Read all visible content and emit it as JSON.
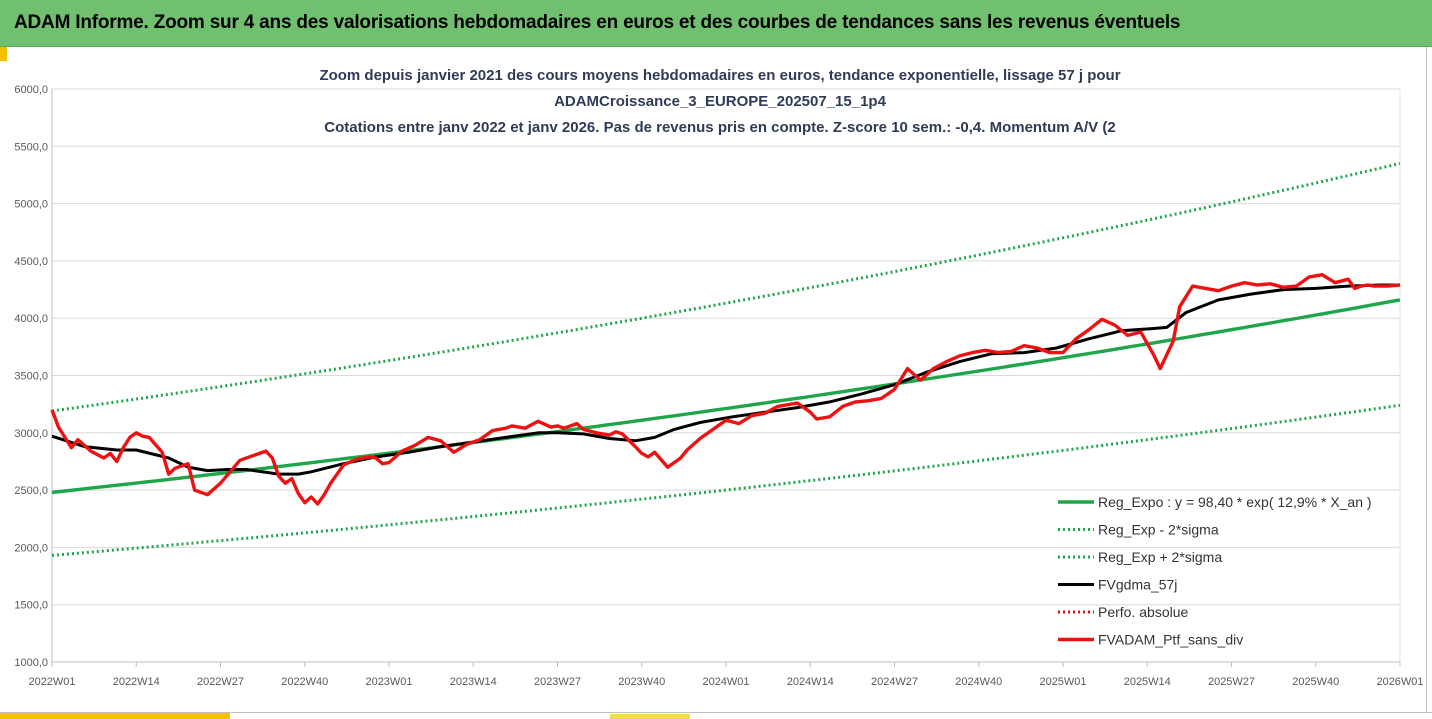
{
  "header": {
    "title": "ADAM Informe. Zoom sur 4 ans des valorisations hebdomadaires en euros et des courbes de tendances sans les revenus éventuels"
  },
  "chart_data": {
    "type": "line",
    "title_lines": [
      "Zoom depuis janvier 2021 des cours moyens hebdomadaires  en euros, tendance exponentielle, lissage 57 j pour",
      "ADAMCroissance_3_EUROPE_202507_15_1p4",
      "Cotations  entre janv 2022 et janv 2026. Pas de revenus pris en compte. Z-score 10 sem.: -0,4. Momentum  A/V (2"
    ],
    "xlabel": "",
    "ylabel": "",
    "ylim": [
      1000,
      6000
    ],
    "y_ticks": [
      "1000,0",
      "1500,0",
      "2000,0",
      "2500,0",
      "3000,0",
      "3500,0",
      "4000,0",
      "4500,0",
      "5000,0",
      "5500,0",
      "6000,0"
    ],
    "x_range_weeks": [
      0,
      208
    ],
    "x_ticks": [
      "2022W01",
      "2022W14",
      "2022W27",
      "2022W40",
      "2023W01",
      "2023W14",
      "2023W27",
      "2023W40",
      "2024W01",
      "2024W14",
      "2024W27",
      "2024W40",
      "2025W01",
      "2025W14",
      "2025W27",
      "2025W40",
      "2026W01"
    ],
    "grid": "horizontal",
    "legend_position": "bottom-right",
    "series": [
      {
        "name": "Reg_Expo : y = 98,40 * exp( 12,9% *  X_an )",
        "color": "#1fa64a",
        "style": "solid",
        "x": [
          0,
          208
        ],
        "y": [
          2480,
          4160
        ],
        "curve": "exponential"
      },
      {
        "name": "Reg_Exp - 2*sigma",
        "color": "#1fa64a",
        "style": "dotted",
        "x": [
          0,
          208
        ],
        "y": [
          1930,
          3240
        ],
        "curve": "exponential"
      },
      {
        "name": "Reg_Exp + 2*sigma",
        "color": "#1fa64a",
        "style": "dotted",
        "x": [
          0,
          208
        ],
        "y": [
          3190,
          5350
        ],
        "curve": "exponential"
      },
      {
        "name": "FVgdma_57j",
        "color": "#000000",
        "style": "solid",
        "x": [
          0,
          5,
          10,
          13,
          18,
          21,
          24,
          27,
          30,
          35,
          38,
          40,
          45,
          50,
          55,
          60,
          65,
          70,
          75,
          78,
          82,
          86,
          90,
          93,
          96,
          100,
          105,
          110,
          115,
          120,
          125,
          130,
          135,
          140,
          145,
          150,
          155,
          160,
          165,
          170,
          172,
          175,
          180,
          185,
          190,
          195,
          200,
          205,
          208
        ],
        "y": [
          2970,
          2880,
          2850,
          2850,
          2780,
          2700,
          2670,
          2680,
          2680,
          2640,
          2640,
          2660,
          2730,
          2790,
          2830,
          2880,
          2920,
          2960,
          3000,
          3000,
          2990,
          2950,
          2930,
          2960,
          3030,
          3090,
          3140,
          3180,
          3220,
          3270,
          3340,
          3420,
          3530,
          3620,
          3690,
          3700,
          3740,
          3820,
          3890,
          3910,
          3920,
          4050,
          4160,
          4210,
          4250,
          4260,
          4280,
          4290,
          4290
        ]
      },
      {
        "name": "Perfo. absolue",
        "color": "#ee1111",
        "style": "dotted",
        "x": [],
        "y": []
      },
      {
        "name": "FVADAM_Ptf_sans_div",
        "color": "#ee1111",
        "style": "solid",
        "x": [
          0,
          1,
          3,
          4,
          6,
          8,
          9,
          10,
          11,
          12,
          13,
          14,
          15,
          17,
          18,
          19,
          21,
          22,
          24,
          26,
          29,
          31,
          33,
          34,
          35,
          36,
          37,
          38,
          39,
          40,
          41,
          42,
          43,
          45,
          47,
          49,
          50,
          51,
          52,
          54,
          56,
          58,
          60,
          62,
          64,
          66,
          68,
          70,
          71,
          73,
          75,
          77,
          78,
          79,
          81,
          82,
          84,
          86,
          87,
          88,
          90,
          91,
          92,
          93,
          95,
          97,
          98,
          100,
          102,
          104,
          106,
          108,
          110,
          112,
          115,
          117,
          118,
          120,
          122,
          124,
          126,
          128,
          130,
          132,
          134,
          136,
          138,
          140,
          142,
          144,
          146,
          148,
          150,
          152,
          154,
          156,
          158,
          160,
          162,
          164,
          166,
          168,
          170,
          171,
          172,
          173,
          174,
          176,
          178,
          180,
          182,
          184,
          186,
          188,
          190,
          192,
          194,
          196,
          198,
          200,
          201,
          202,
          203,
          204,
          206,
          208
        ],
        "y": [
          3200,
          3050,
          2870,
          2940,
          2840,
          2780,
          2820,
          2750,
          2870,
          2960,
          3000,
          2970,
          2960,
          2830,
          2640,
          2690,
          2730,
          2500,
          2460,
          2560,
          2760,
          2800,
          2840,
          2780,
          2620,
          2560,
          2600,
          2470,
          2390,
          2440,
          2380,
          2460,
          2560,
          2720,
          2770,
          2790,
          2780,
          2730,
          2740,
          2840,
          2890,
          2960,
          2930,
          2830,
          2900,
          2940,
          3020,
          3040,
          3060,
          3040,
          3100,
          3050,
          3060,
          3040,
          3080,
          3030,
          3000,
          2980,
          3010,
          2990,
          2880,
          2820,
          2790,
          2830,
          2700,
          2780,
          2850,
          2950,
          3030,
          3110,
          3080,
          3150,
          3170,
          3230,
          3260,
          3180,
          3120,
          3140,
          3230,
          3270,
          3280,
          3300,
          3380,
          3560,
          3460,
          3560,
          3620,
          3670,
          3700,
          3720,
          3700,
          3710,
          3760,
          3740,
          3700,
          3700,
          3820,
          3900,
          3990,
          3940,
          3850,
          3880,
          3680,
          3560,
          3680,
          3800,
          4100,
          4280,
          4260,
          4240,
          4280,
          4310,
          4290,
          4300,
          4270,
          4280,
          4360,
          4380,
          4310,
          4340,
          4260,
          4280,
          4290,
          4280,
          4280,
          4290
        ]
      }
    ]
  }
}
